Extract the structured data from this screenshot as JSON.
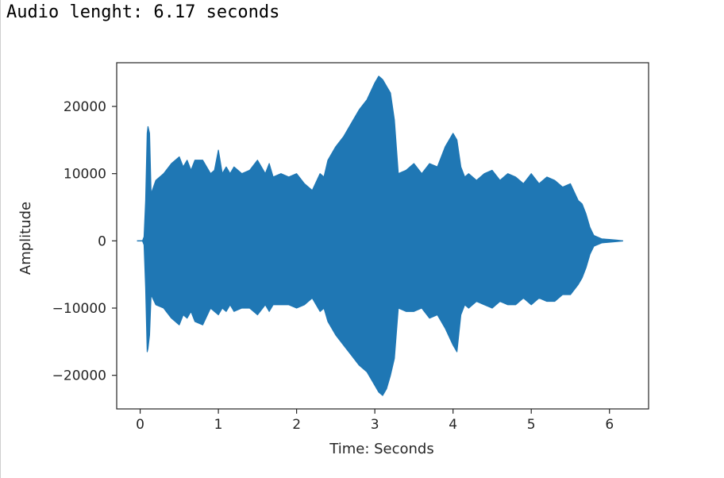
{
  "console": {
    "output_line": "Audio lenght: 6.17 seconds"
  },
  "colors": {
    "series": "#1f77b4",
    "axes": "#262626",
    "background": "#ffffff"
  },
  "chart_data": {
    "type": "line",
    "title": "",
    "xlabel": "Time: Seconds",
    "ylabel": "Amplitude",
    "xlim": [
      -0.3,
      6.5
    ],
    "ylim": [
      -25000,
      26500
    ],
    "grid": false,
    "legend": "none",
    "xticks": [
      0,
      1,
      2,
      3,
      4,
      5,
      6
    ],
    "xtick_labels": [
      "0",
      "1",
      "2",
      "3",
      "4",
      "5",
      "6"
    ],
    "yticks": [
      20000,
      10000,
      0,
      -10000,
      -20000
    ],
    "ytick_labels": [
      "20000",
      "10000",
      "0",
      "−10000",
      "−20000"
    ],
    "duration_seconds": 6.17,
    "series": [
      {
        "style": "filled waveform envelope",
        "x": [
          0.0,
          0.03,
          0.05,
          0.07,
          0.09,
          0.1,
          0.12,
          0.14,
          0.2,
          0.3,
          0.4,
          0.5,
          0.55,
          0.6,
          0.65,
          0.7,
          0.8,
          0.9,
          0.95,
          1.0,
          1.05,
          1.1,
          1.15,
          1.2,
          1.3,
          1.4,
          1.5,
          1.6,
          1.65,
          1.7,
          1.8,
          1.9,
          2.0,
          2.1,
          2.2,
          2.3,
          2.35,
          2.4,
          2.5,
          2.6,
          2.7,
          2.8,
          2.9,
          3.0,
          3.05,
          3.1,
          3.15,
          3.2,
          3.25,
          3.3,
          3.4,
          3.5,
          3.6,
          3.7,
          3.8,
          3.9,
          4.0,
          4.05,
          4.1,
          4.15,
          4.2,
          4.3,
          4.4,
          4.5,
          4.6,
          4.7,
          4.8,
          4.9,
          5.0,
          5.1,
          5.2,
          5.3,
          5.4,
          5.5,
          5.6,
          5.65,
          5.7,
          5.75,
          5.8,
          5.9,
          6.0,
          6.1,
          6.17
        ],
        "upper": [
          0,
          0,
          600,
          6000,
          16000,
          17000,
          16000,
          7000,
          9000,
          10000,
          11500,
          12500,
          11000,
          12000,
          10500,
          12000,
          12000,
          10000,
          10500,
          13500,
          10000,
          11000,
          10000,
          11000,
          10000,
          10500,
          12000,
          10000,
          11500,
          9500,
          10000,
          9500,
          10000,
          8500,
          7500,
          10000,
          9500,
          12000,
          14000,
          15500,
          17500,
          19500,
          21000,
          23500,
          24500,
          24000,
          23000,
          22000,
          18000,
          10000,
          10500,
          11500,
          10000,
          11500,
          11000,
          14000,
          16000,
          15000,
          11000,
          9500,
          10000,
          9000,
          10000,
          10500,
          9000,
          10000,
          9500,
          8500,
          10000,
          8500,
          9500,
          9000,
          8000,
          8500,
          6000,
          5500,
          4000,
          2000,
          800,
          300,
          200,
          100,
          0
        ],
        "lower": [
          0,
          0,
          -600,
          -7000,
          -16500,
          -16000,
          -14000,
          -8000,
          -9500,
          -10000,
          -11500,
          -12500,
          -11000,
          -11500,
          -10500,
          -12000,
          -12500,
          -10000,
          -10500,
          -11000,
          -10000,
          -10500,
          -9500,
          -10500,
          -10000,
          -10000,
          -11000,
          -9500,
          -10500,
          -9500,
          -9500,
          -9500,
          -10000,
          -9500,
          -8500,
          -10500,
          -10000,
          -12000,
          -14000,
          -15500,
          -17000,
          -18500,
          -19500,
          -21500,
          -22500,
          -23000,
          -22000,
          -20000,
          -17500,
          -10000,
          -10500,
          -10500,
          -10000,
          -11500,
          -11000,
          -13000,
          -15500,
          -16500,
          -11000,
          -9500,
          -10000,
          -9000,
          -9500,
          -10000,
          -9000,
          -9500,
          -9500,
          -8500,
          -9500,
          -8500,
          -9000,
          -9000,
          -8000,
          -8000,
          -6500,
          -5500,
          -4000,
          -2000,
          -800,
          -300,
          -200,
          -100,
          0
        ]
      }
    ]
  }
}
